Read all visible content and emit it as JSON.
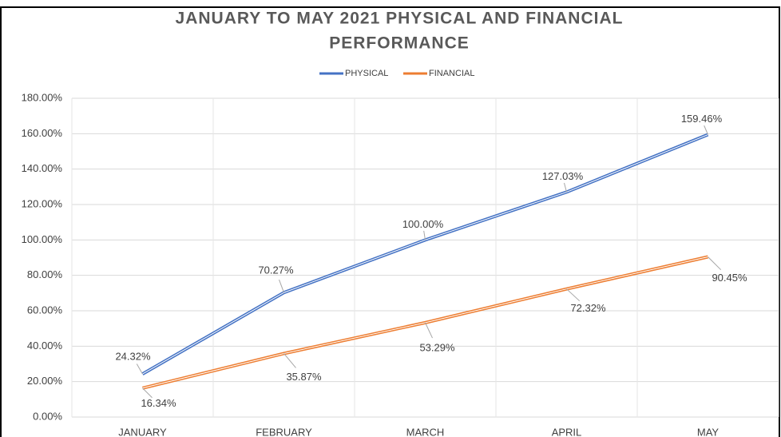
{
  "chart_data": {
    "type": "line",
    "title": [
      "JANUARY TO MAY 2021 PHYSICAL AND FINANCIAL",
      "PERFORMANCE"
    ],
    "categories": [
      "JANUARY",
      "FEBRUARY",
      "MARCH",
      "APRIL",
      "MAY"
    ],
    "series": [
      {
        "name": "PHYSICAL",
        "color": "#4472c4",
        "values": [
          24.32,
          70.27,
          100,
          127.03,
          159.46
        ],
        "value_labels": [
          "24.32%",
          "70.27%",
          "100.00%",
          "127.03%",
          "159.46%"
        ]
      },
      {
        "name": "FINANCIAL",
        "color": "#ed7d31",
        "values": [
          16.34,
          35.87,
          53.29,
          72.32,
          90.45
        ],
        "value_labels": [
          "16.34%",
          "35.87%",
          "53.29%",
          "72.32%",
          "90.45%"
        ]
      }
    ],
    "ylim": [
      0,
      180
    ],
    "yticks": [
      {
        "value": 0,
        "label": "0.00%"
      },
      {
        "value": 20,
        "label": "20.00%"
      },
      {
        "value": 40,
        "label": "40.00%"
      },
      {
        "value": 60,
        "label": "60.00%"
      },
      {
        "value": 80,
        "label": "80.00%"
      },
      {
        "value": 100,
        "label": "100.00%"
      },
      {
        "value": 120,
        "label": "120.00%"
      },
      {
        "value": 140,
        "label": "140.00%"
      },
      {
        "value": 160,
        "label": "160.00%"
      },
      {
        "value": 180,
        "label": "180.00%"
      }
    ],
    "grid": true,
    "legend": "top"
  }
}
